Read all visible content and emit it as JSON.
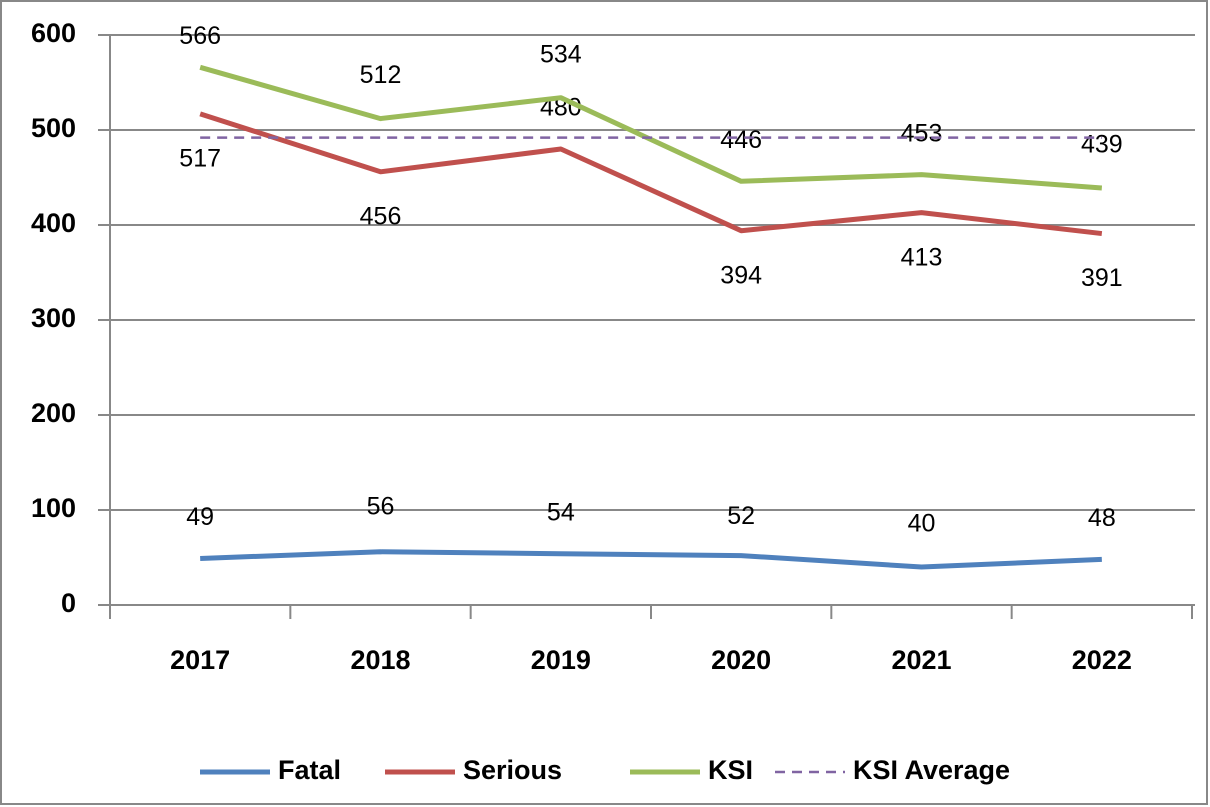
{
  "chart_data": {
    "type": "line",
    "categories": [
      "2017",
      "2018",
      "2019",
      "2020",
      "2021",
      "2022"
    ],
    "series": [
      {
        "name": "Fatal",
        "color": "#4f81bd",
        "values": [
          49,
          56,
          54,
          52,
          40,
          48
        ],
        "labels": true
      },
      {
        "name": "Serious",
        "color": "#c0504d",
        "values": [
          517,
          456,
          480,
          394,
          413,
          391
        ],
        "labels": true
      },
      {
        "name": "KSI",
        "color": "#9bbb59",
        "values": [
          566,
          512,
          534,
          446,
          453,
          439
        ],
        "labels": true
      },
      {
        "name": "KSI Average",
        "color": "#8064a2",
        "values": [
          492,
          492,
          492,
          492,
          492,
          492
        ],
        "style": "dashed",
        "labels": false
      }
    ],
    "ylim": [
      0,
      600
    ],
    "yticks": [
      0,
      100,
      200,
      300,
      400,
      500,
      600
    ],
    "grid": true,
    "legend": "bottom"
  }
}
